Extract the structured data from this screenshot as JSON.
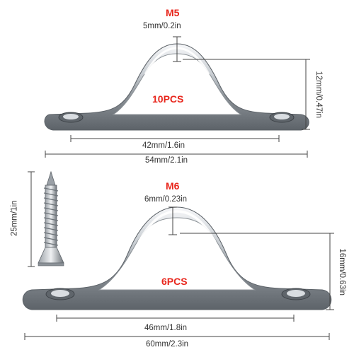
{
  "product": {
    "top": {
      "size_label": "M5",
      "thickness": "5mm/0.2in",
      "height": "12mm/0.47in",
      "quantity": "10PCS",
      "hole_spacing": "42mm/1.6in",
      "total_length": "54mm/2.1in"
    },
    "bottom": {
      "size_label": "M6",
      "thickness": "6mm/0.23in",
      "height": "16mm/0.63in",
      "quantity": "6PCS",
      "hole_spacing": "46mm/1.8in",
      "total_length": "60mm/2.3in"
    },
    "screw": {
      "length": "25mm/1in"
    }
  },
  "colors": {
    "accent": "#e8261c",
    "metal_dark": "#6f7479",
    "metal_light": "#f4f6f8"
  }
}
